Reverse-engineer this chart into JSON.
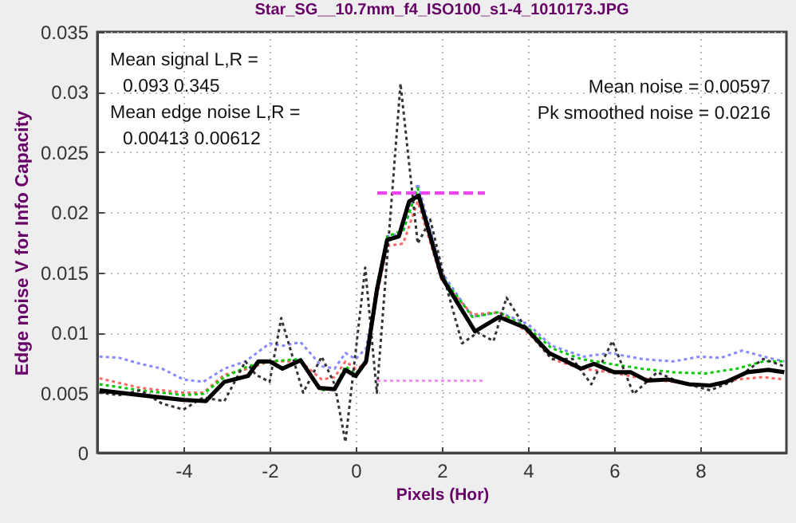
{
  "chart_data": {
    "type": "line",
    "title": "Star_SG__10.7mm_f4_ISO100_s1-4_1010173.JPG",
    "xlabel": "Pixels (Hor)",
    "ylabel": "Edge noise V for Info Capacity",
    "annotations": [
      "Mean signal L,R =",
      "0.093  0.345",
      "Mean edge noise L,R =",
      "0.00413  0.00612",
      "Mean noise = 0.00597",
      "Pk smoothed noise = 0.0216"
    ],
    "xlim": [
      -6,
      10
    ],
    "xticks": [
      -4,
      -2,
      0,
      2,
      4,
      6,
      8
    ],
    "ylim": [
      0,
      0.035
    ],
    "yticks": [
      0,
      0.005,
      0.01,
      0.015,
      0.02,
      0.025,
      0.03,
      0.035
    ],
    "grid": true,
    "legend": false,
    "series": [
      {
        "color": "#8888ff",
        "line_style": "dotted",
        "x": [
          -5.95,
          -5.49,
          -5,
          -4.5,
          -4,
          -3.54,
          -3.05,
          -2.56,
          -2,
          -1.7,
          -1.28,
          -0.79,
          -0.49,
          -0.24,
          0,
          0.24,
          0.49,
          0.73,
          1.1,
          1.44,
          2,
          2.71,
          3.33,
          4,
          4.55,
          5.29,
          5.9,
          6.64,
          7.37,
          7.99,
          8.48,
          8.97,
          9.58,
          9.95
        ],
        "values": [
          0.008,
          0.0079,
          0.0074,
          0.007,
          0.0061,
          0.0059,
          0.007,
          0.0076,
          0.0091,
          0.0089,
          0.0092,
          0.0072,
          0.007,
          0.0083,
          0.0078,
          0.0087,
          0.0135,
          0.018,
          0.0183,
          0.0224,
          0.015,
          0.0113,
          0.0117,
          0.0107,
          0.0089,
          0.008,
          0.0083,
          0.0078,
          0.0076,
          0.008,
          0.0079,
          0.0085,
          0.0079,
          0.0076
        ]
      },
      {
        "color": "#ff6666",
        "line_style": "dotted",
        "x": [
          -5.95,
          -5,
          -4,
          -3.54,
          -3.05,
          -2.5,
          -2,
          -1.28,
          -0.79,
          -0.49,
          -0.24,
          0,
          0.24,
          0.49,
          0.73,
          1.1,
          1.44,
          2,
          2.71,
          3.33,
          4,
          4.55,
          5.23,
          5.9,
          6.64,
          7.37,
          8.11,
          8.85,
          9.46,
          9.95
        ],
        "values": [
          0.0062,
          0.0054,
          0.005,
          0.005,
          0.0065,
          0.007,
          0.0076,
          0.0076,
          0.0061,
          0.0063,
          0.0076,
          0.007,
          0.0074,
          0.013,
          0.0172,
          0.0174,
          0.0209,
          0.0143,
          0.0115,
          0.0117,
          0.01,
          0.0078,
          0.007,
          0.0067,
          0.0062,
          0.0059,
          0.0056,
          0.0061,
          0.0063,
          0.0061
        ]
      },
      {
        "color": "#00cc00",
        "line_style": "dotted",
        "x": [
          -5.95,
          -5,
          -4,
          -3.54,
          -3.05,
          -2.5,
          -2,
          -1.28,
          -0.79,
          -0.49,
          -0.24,
          0,
          0.24,
          0.49,
          0.73,
          1.1,
          1.44,
          2,
          2.71,
          3.33,
          4,
          4.55,
          5.23,
          5.9,
          6.64,
          7.37,
          8.11,
          8.85,
          9.46,
          9.95
        ],
        "values": [
          0.0057,
          0.0052,
          0.0048,
          0.0049,
          0.0063,
          0.0072,
          0.0076,
          0.0078,
          0.0052,
          0.0054,
          0.0072,
          0.0065,
          0.0076,
          0.0139,
          0.018,
          0.0185,
          0.022,
          0.0147,
          0.0113,
          0.0117,
          0.0104,
          0.0087,
          0.0078,
          0.0074,
          0.007,
          0.0067,
          0.0066,
          0.007,
          0.0076,
          0.0076
        ]
      },
      {
        "color": "#333333",
        "line_style": "dotted",
        "x": [
          -5.95,
          -5.49,
          -5,
          -4.5,
          -4,
          -3.54,
          -3.05,
          -2.56,
          -2.32,
          -2,
          -1.73,
          -1.22,
          -0.79,
          -0.49,
          -0.24,
          0.22,
          0.49,
          1.04,
          1.44,
          1.73,
          2.1,
          2.47,
          2.83,
          3.2,
          3.5,
          3.94,
          4.55,
          5.04,
          5.47,
          5.96,
          6.45,
          7,
          7.5,
          8.23,
          8.72,
          9.46,
          9.95
        ],
        "values": [
          0.005,
          0.0048,
          0.0052,
          0.0041,
          0.0036,
          0.0046,
          0.0043,
          0.0076,
          0.0065,
          0.0059,
          0.0112,
          0.005,
          0.008,
          0.0057,
          0.0009,
          0.0154,
          0.005,
          0.0307,
          0.0174,
          0.0194,
          0.0139,
          0.0091,
          0.01,
          0.0093,
          0.0129,
          0.0104,
          0.0078,
          0.0078,
          0.0057,
          0.0093,
          0.0049,
          0.0067,
          0.0059,
          0.0052,
          0.0059,
          0.0078,
          0.0072
        ]
      },
      {
        "color": "#000000",
        "line_style": "solid",
        "x": [
          -5.95,
          -5,
          -4,
          -3.48,
          -3.05,
          -2.5,
          -2.26,
          -2,
          -1.7,
          -1.28,
          -0.85,
          -0.49,
          -0.24,
          0,
          0.24,
          0.49,
          0.73,
          1,
          1.24,
          1.46,
          2,
          2.34,
          2.77,
          3.33,
          3.94,
          4.49,
          5.23,
          5.53,
          6,
          6.39,
          6.76,
          7.25,
          7.74,
          8.23,
          8.6,
          9.09,
          9.58,
          9.95
        ],
        "values": [
          0.0052,
          0.0048,
          0.0044,
          0.0043,
          0.0059,
          0.0064,
          0.0076,
          0.0076,
          0.007,
          0.0077,
          0.0054,
          0.0053,
          0.0069,
          0.0064,
          0.0076,
          0.0135,
          0.0177,
          0.018,
          0.0209,
          0.0214,
          0.0146,
          0.0126,
          0.0101,
          0.0113,
          0.0104,
          0.0083,
          0.007,
          0.0074,
          0.0067,
          0.0067,
          0.006,
          0.0061,
          0.0057,
          0.0056,
          0.0059,
          0.0067,
          0.0069,
          0.0067
        ]
      },
      {
        "color": "#ee44ee",
        "line_style": "dashed",
        "x": [
          0.5,
          3
        ],
        "values": [
          0.0216,
          0.0216
        ]
      },
      {
        "color": "#ff88ff",
        "line_style": "dotted",
        "x": [
          0.5,
          3
        ],
        "values": [
          0.006,
          0.006
        ]
      }
    ]
  }
}
